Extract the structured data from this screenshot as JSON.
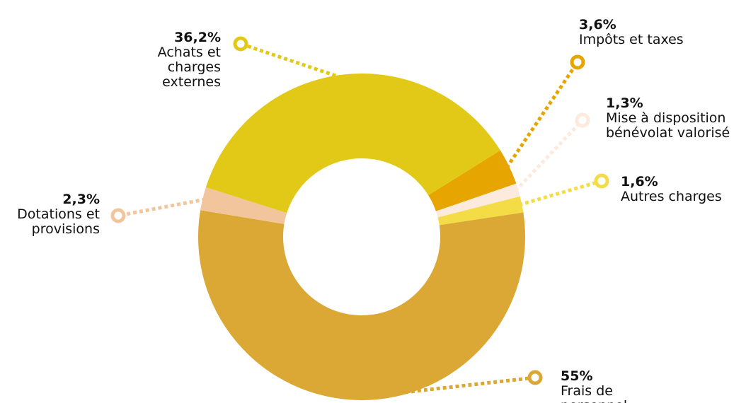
{
  "chart_data": {
    "type": "pie",
    "slices": [
      {
        "key": "impots",
        "value": 3.6,
        "pct_label": "3,6%",
        "label_lines": [
          "Impôts et taxes"
        ],
        "color": "#E6A500"
      },
      {
        "key": "benevolat",
        "value": 1.3,
        "pct_label": "1,3%",
        "label_lines": [
          "Mise à disposition",
          "bénévolat valorisé"
        ],
        "color": "#FCEBDD"
      },
      {
        "key": "autres",
        "value": 1.6,
        "pct_label": "1,6%",
        "label_lines": [
          "Autres charges"
        ],
        "color": "#F3DC46"
      },
      {
        "key": "personnel",
        "value": 55,
        "pct_label": "55%",
        "label_lines": [
          "Frais de",
          "personnel"
        ],
        "color": "#DBA836"
      },
      {
        "key": "dotations",
        "value": 2.3,
        "pct_label": "2,3%",
        "label_lines": [
          "Dotations et",
          "provisions"
        ],
        "color": "#F2C59D"
      },
      {
        "key": "achats",
        "value": 36.2,
        "pct_label": "36,2%",
        "label_lines": [
          "Achats et",
          "charges",
          "externes"
        ],
        "color": "#E2C917"
      }
    ]
  }
}
